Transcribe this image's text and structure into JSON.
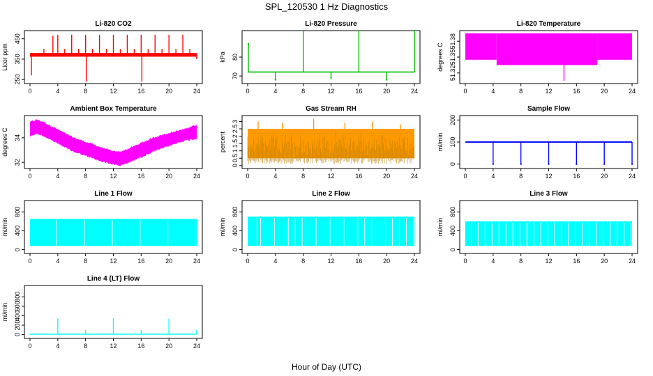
{
  "figure": {
    "title": "SPL_120530  1 Hz Diagnostics",
    "xlabel": "Hour of Day (UTC)",
    "x_ticks": [
      0,
      4,
      8,
      12,
      16,
      20,
      24
    ],
    "xlim": [
      0,
      24
    ]
  },
  "chart_data": [
    {
      "type": "line",
      "title": "Li-820 CO2",
      "ylabel": "Licor ppm",
      "color": "#ff0000",
      "ylim": [
        230,
        490
      ],
      "yticks": [
        250,
        350,
        450
      ],
      "band": {
        "x": [
          0,
          24
        ],
        "low": 362,
        "high": 380
      },
      "spikes": [
        {
          "x": [
            0.2,
            2,
            3.3,
            4,
            5,
            6,
            7,
            8,
            8.1,
            9,
            10,
            11,
            12,
            13,
            14,
            15,
            16,
            16.1,
            17,
            18,
            19,
            20,
            21,
            22,
            23,
            24
          ],
          "y": [
            270,
            400,
            465,
            470,
            400,
            470,
            400,
            470,
            240,
            400,
            470,
            400,
            470,
            400,
            470,
            400,
            470,
            240,
            400,
            470,
            400,
            470,
            400,
            470,
            400,
            350
          ]
        }
      ]
    },
    {
      "type": "line",
      "title": "Li-820 Pressure",
      "ylabel": "kPa",
      "color": "#00c000",
      "ylim": [
        66,
        94
      ],
      "yticks": [
        70,
        80
      ],
      "band": {
        "x": [
          0,
          24
        ],
        "low": 71.8,
        "high": 72.4
      },
      "spikes": [
        {
          "x": [
            0.1,
            4,
            8,
            12,
            16,
            20,
            24
          ],
          "y": [
            87,
            68,
            94,
            69,
            94,
            68,
            94
          ]
        }
      ]
    },
    {
      "type": "area",
      "title": "Li-820 Temperature",
      "ylabel": "degrees C",
      "color": "#ff00ff",
      "ylim": [
        51.3,
        51.4
      ],
      "yticks": [
        51.32,
        51.35,
        51.38
      ],
      "segments": [
        {
          "x": [
            0,
            4.5
          ],
          "low": 51.345,
          "high": 51.395
        },
        {
          "x": [
            4.5,
            19
          ],
          "low": 51.335,
          "high": 51.395
        },
        {
          "x": [
            19,
            24
          ],
          "low": 51.345,
          "high": 51.395
        }
      ],
      "spikes": [
        {
          "x": [
            14.2
          ],
          "y": [
            51.305
          ]
        }
      ]
    },
    {
      "type": "area",
      "title": "Ambient Box Temperature",
      "ylabel": "degrees C",
      "color": "#ff00ff",
      "ylim": [
        31.5,
        35.8
      ],
      "yticks": [
        32,
        34
      ],
      "envelope": {
        "x": [
          0,
          1,
          2,
          4,
          6,
          8,
          10,
          12,
          13,
          14,
          16,
          18,
          20,
          22,
          24
        ],
        "low": [
          34.2,
          34.4,
          34.2,
          33.6,
          33.0,
          32.6,
          32.2,
          31.9,
          31.8,
          32.0,
          32.5,
          33.0,
          33.4,
          33.8,
          34.0
        ],
        "high": [
          35.2,
          35.4,
          35.2,
          34.6,
          34.0,
          33.6,
          33.2,
          32.8,
          32.8,
          33.0,
          33.5,
          34.0,
          34.3,
          34.6,
          35.0
        ]
      }
    },
    {
      "type": "area",
      "title": "Gas Stream RH",
      "ylabel": "percent",
      "color": "#ff9900",
      "ylim": [
        -0.2,
        3.4
      ],
      "yticks": [
        0.0,
        0.5,
        1.0,
        1.5,
        2.0,
        2.5,
        3.0
      ],
      "band": {
        "x": [
          0,
          24
        ],
        "low": 0.5,
        "high": 2.5
      },
      "spikes": [
        {
          "x": [
            1.5,
            5,
            9.5,
            14,
            18,
            22
          ],
          "y": [
            3.0,
            2.9,
            3.2,
            2.9,
            3.0,
            2.8
          ]
        }
      ]
    },
    {
      "type": "line",
      "title": "Sample Flow",
      "ylabel": "ml/min",
      "color": "#0000ff",
      "ylim": [
        -20,
        220
      ],
      "yticks": [
        0,
        100,
        200
      ],
      "band": {
        "x": [
          0,
          24
        ],
        "low": 97,
        "high": 103
      },
      "spikes": [
        {
          "x": [
            4,
            8,
            12,
            16,
            20,
            24
          ],
          "y": [
            0,
            0,
            0,
            0,
            0,
            0
          ]
        }
      ]
    },
    {
      "type": "area",
      "title": "Line 1 Flow",
      "ylabel": "ml/min",
      "color": "#00ffff",
      "ylim": [
        -80,
        1040
      ],
      "yticks": [
        0,
        400,
        800
      ],
      "band": {
        "x": [
          0,
          24
        ],
        "low": 80,
        "high": 650
      },
      "dips": [
        4,
        8,
        12,
        16,
        20,
        24
      ]
    },
    {
      "type": "area",
      "title": "Line 2 Flow",
      "ylabel": "ml/min",
      "color": "#00ffff",
      "ylim": [
        -80,
        1040
      ],
      "yticks": [
        0,
        400,
        800
      ],
      "band": {
        "x": [
          0,
          24
        ],
        "low": 80,
        "high": 700
      },
      "dips": [
        1.5,
        2,
        4,
        6,
        7,
        8,
        10,
        12,
        14,
        16,
        17,
        18,
        20,
        21,
        22,
        23,
        24
      ]
    },
    {
      "type": "area",
      "title": "Line 3 Flow",
      "ylabel": "ml/min",
      "color": "#00ffff",
      "ylim": [
        -80,
        1040
      ],
      "yticks": [
        0,
        400,
        800
      ],
      "band": {
        "x": [
          0,
          24
        ],
        "low": 80,
        "high": 600
      },
      "dips": [
        1,
        2,
        3,
        4,
        5,
        6,
        7,
        8,
        9,
        10,
        11,
        12,
        13,
        14,
        15,
        16,
        17,
        18,
        19,
        20,
        21,
        22,
        23,
        24
      ]
    },
    {
      "type": "line",
      "title": "Line 4 (LT) Flow",
      "ylabel": "ml/min",
      "color": "#00ffff",
      "ylim": [
        -80,
        1040
      ],
      "yticks": [
        0,
        200,
        400,
        600,
        800
      ],
      "band": {
        "x": [
          0,
          24
        ],
        "low": 5,
        "high": 20
      },
      "spikes": [
        {
          "x": [
            4,
            8,
            12,
            16,
            20,
            24
          ],
          "y": [
            340,
            100,
            350,
            100,
            340,
            100
          ]
        }
      ]
    }
  ]
}
